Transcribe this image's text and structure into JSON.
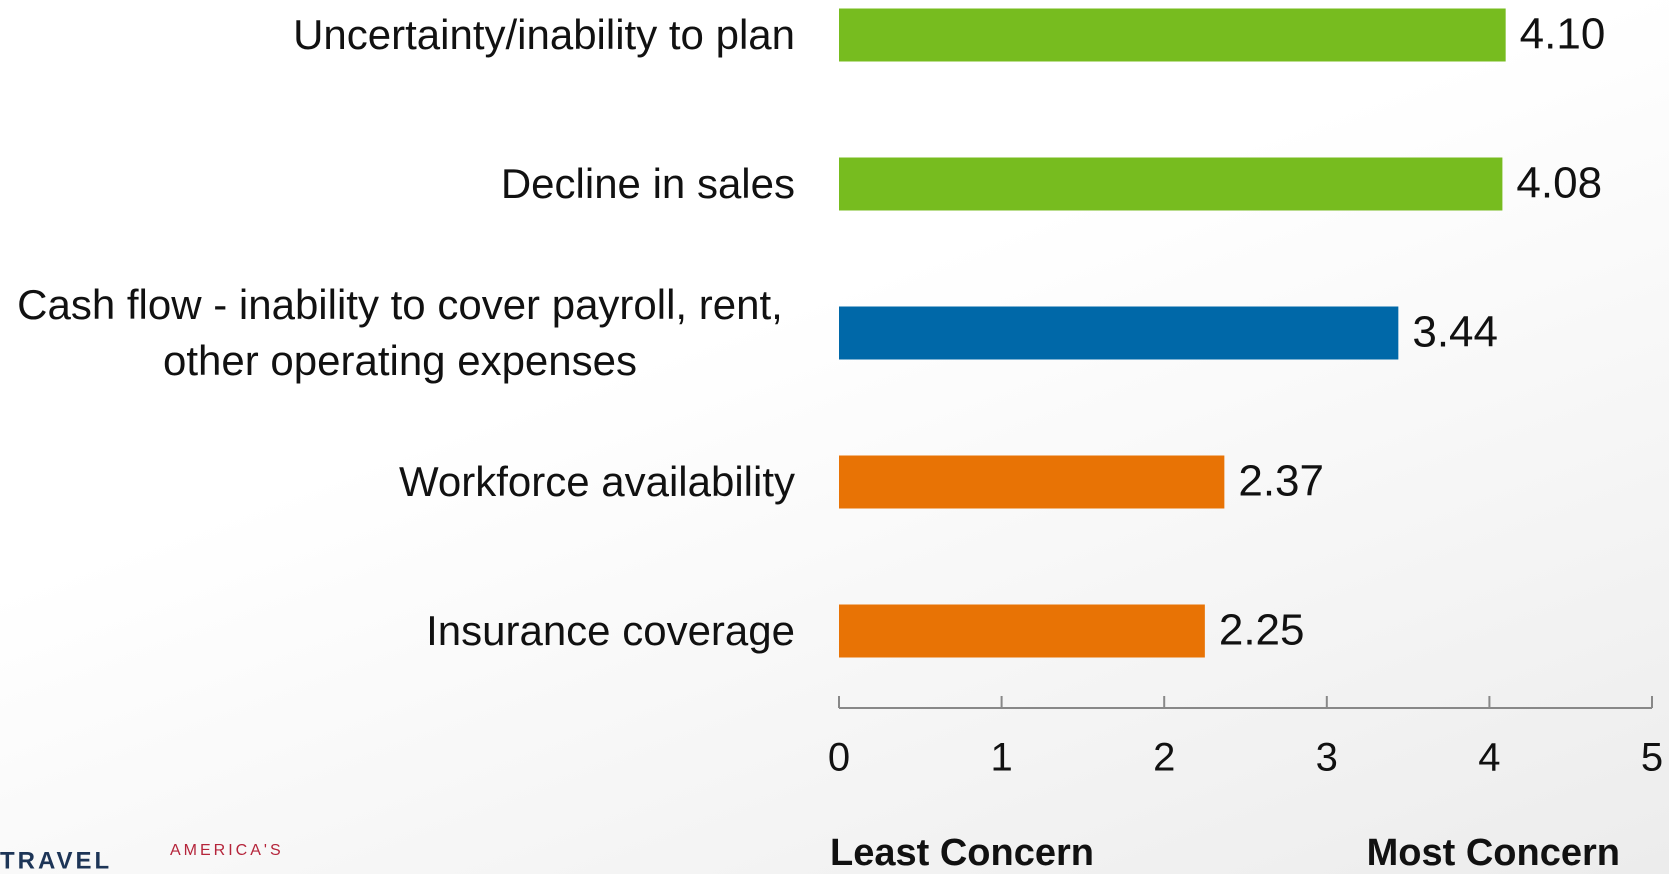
{
  "chart_data": {
    "type": "bar",
    "orientation": "horizontal",
    "categories": [
      "Uncertainty/inability to plan",
      "Decline in sales",
      "Cash flow - inability to cover payroll, rent, other operating expenses",
      "Workforce availability",
      "Insurance coverage"
    ],
    "values": [
      4.1,
      4.08,
      3.44,
      2.37,
      2.25
    ],
    "value_labels": [
      "4.10",
      "4.08",
      "3.44",
      "2.37",
      "2.25"
    ],
    "colors": [
      "#77bc1f",
      "#77bc1f",
      "#0068a8",
      "#e87305",
      "#e87305"
    ],
    "xlim": [
      0,
      5
    ],
    "xticks": [
      0,
      1,
      2,
      3,
      4,
      5
    ],
    "x_min_label": "Least Concern",
    "x_max_label": "Most Concern"
  },
  "footer": {
    "logo_left": "TRAVEL",
    "logo_right": "AMERICA'S"
  }
}
